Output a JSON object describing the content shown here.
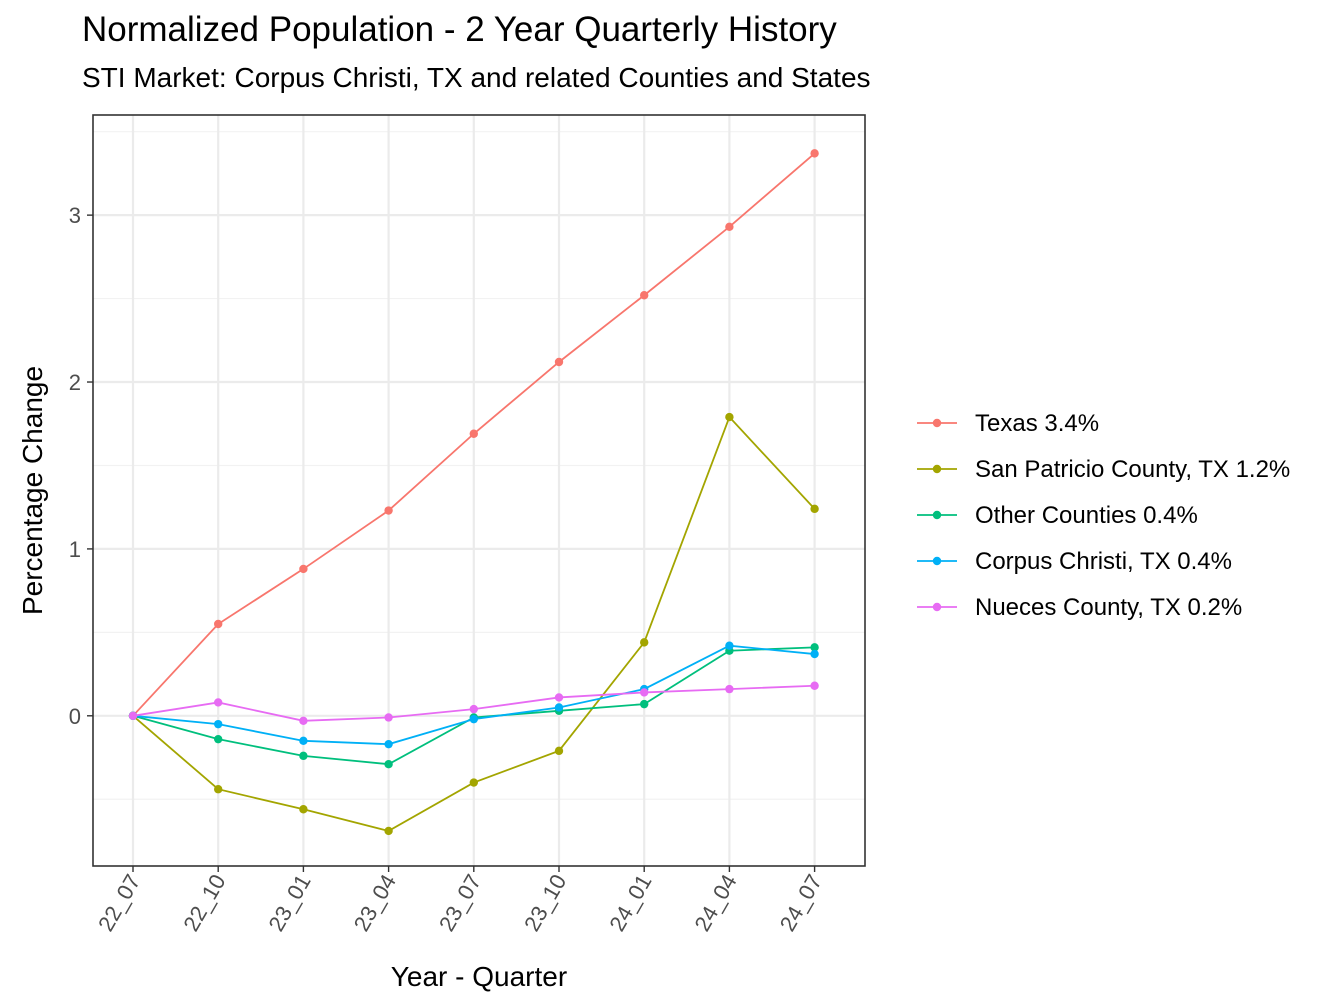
{
  "chart_data": {
    "type": "line",
    "title": "Normalized Population - 2 Year Quarterly History",
    "subtitle": "STI Market: Corpus Christi, TX and related Counties and States",
    "xlabel": "Year - Quarter",
    "ylabel": "Percentage Change",
    "categories": [
      "22_07",
      "22_10",
      "23_01",
      "23_04",
      "23_07",
      "23_10",
      "24_01",
      "24_04",
      "24_07"
    ],
    "ylim": [
      -0.9,
      3.6
    ],
    "yticks": [
      0,
      1,
      2,
      3
    ],
    "grid": true,
    "legend_position": "right",
    "series": [
      {
        "name": "Texas 3.4%",
        "color": "#F8766D",
        "values": [
          0,
          0.55,
          0.88,
          1.23,
          1.69,
          2.12,
          2.52,
          2.93,
          3.37
        ]
      },
      {
        "name": "San Patricio County, TX 1.2%",
        "color": "#A3A500",
        "values": [
          0,
          -0.44,
          -0.56,
          -0.69,
          -0.4,
          -0.21,
          0.44,
          1.79,
          1.24
        ]
      },
      {
        "name": "Other Counties 0.4%",
        "color": "#00BF7D",
        "values": [
          0,
          -0.14,
          -0.24,
          -0.29,
          -0.01,
          0.03,
          0.07,
          0.39,
          0.41
        ]
      },
      {
        "name": "Corpus Christi, TX 0.4%",
        "color": "#00B0F6",
        "values": [
          0,
          -0.05,
          -0.15,
          -0.17,
          -0.02,
          0.05,
          0.16,
          0.42,
          0.37
        ]
      },
      {
        "name": "Nueces County, TX 0.2%",
        "color": "#E76BF3",
        "values": [
          0,
          0.08,
          -0.03,
          -0.01,
          0.04,
          0.11,
          0.14,
          0.16,
          0.18
        ]
      }
    ]
  }
}
